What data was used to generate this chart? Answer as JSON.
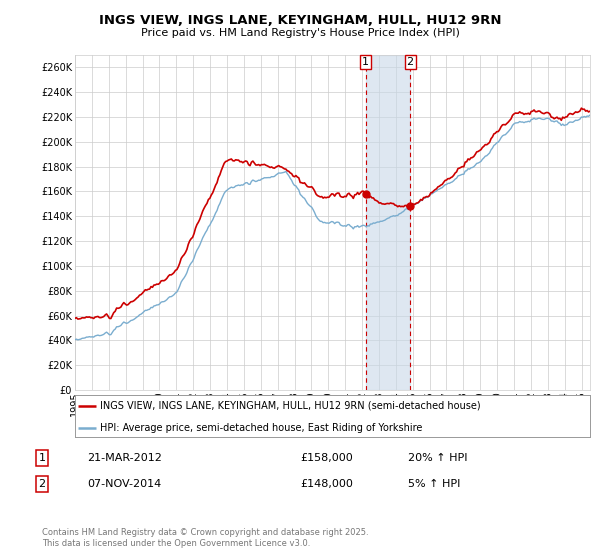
{
  "title": "INGS VIEW, INGS LANE, KEYINGHAM, HULL, HU12 9RN",
  "subtitle": "Price paid vs. HM Land Registry's House Price Index (HPI)",
  "ytick_values": [
    0,
    20000,
    40000,
    60000,
    80000,
    100000,
    120000,
    140000,
    160000,
    180000,
    200000,
    220000,
    240000,
    260000
  ],
  "ylim": [
    0,
    270000
  ],
  "xlim_start": 1995.0,
  "xlim_end": 2025.5,
  "legend_line1": "INGS VIEW, INGS LANE, KEYINGHAM, HULL, HU12 9RN (semi-detached house)",
  "legend_line2": "HPI: Average price, semi-detached house, East Riding of Yorkshire",
  "sale1_date": "21-MAR-2012",
  "sale1_price": "£158,000",
  "sale1_hpi": "20% ↑ HPI",
  "sale2_date": "07-NOV-2014",
  "sale2_price": "£148,000",
  "sale2_hpi": "5% ↑ HPI",
  "copyright": "Contains HM Land Registry data © Crown copyright and database right 2025.\nThis data is licensed under the Open Government Licence v3.0.",
  "line_color_red": "#cc0000",
  "line_color_blue": "#7aadcf",
  "sale1_x": 2012.22,
  "sale2_x": 2014.85,
  "sale1_y": 158000,
  "sale2_y": 148000,
  "shade_color": "#c8d8e8",
  "vline_color": "#cc0000",
  "background_color": "#ffffff",
  "grid_color": "#cccccc",
  "title_fontsize": 9.5,
  "subtitle_fontsize": 8.0,
  "tick_fontsize": 7.0,
  "legend_fontsize": 7.0,
  "annot_fontsize": 8.0,
  "copyright_fontsize": 6.0
}
